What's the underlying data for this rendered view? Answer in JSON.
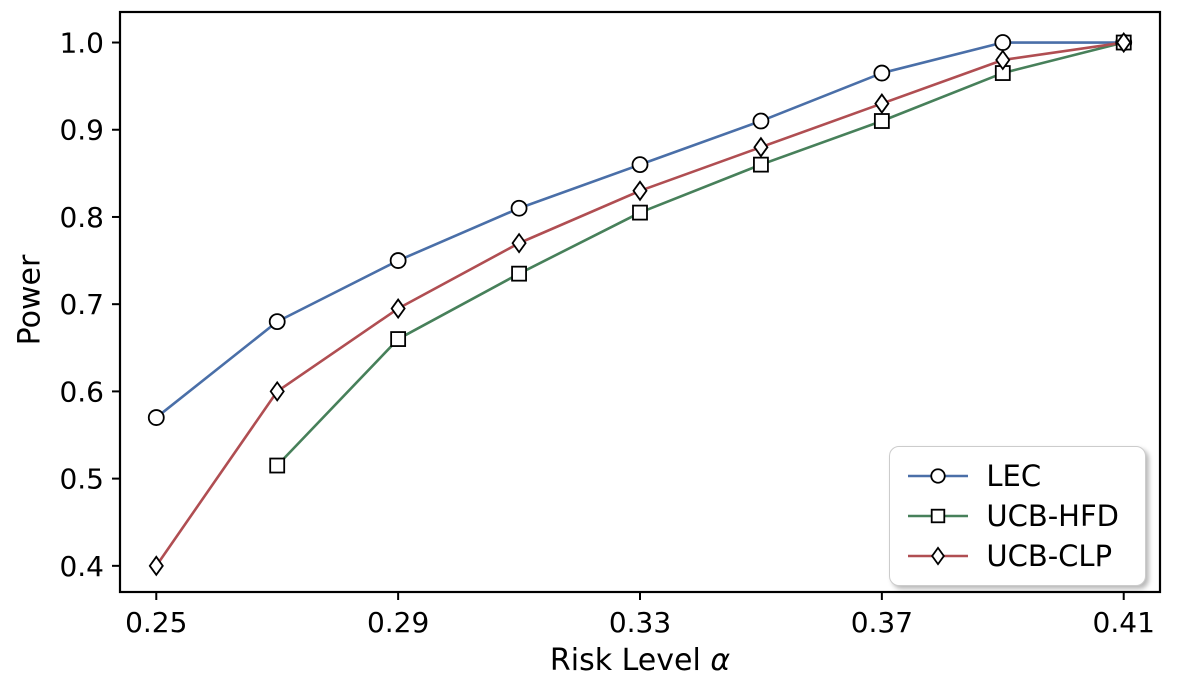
{
  "chart_data": {
    "type": "line",
    "title": "",
    "xlabel_text": "Risk Level ",
    "xlabel_symbol": "α",
    "ylabel": "Power",
    "xlim": [
      0.244,
      0.416
    ],
    "ylim": [
      0.37,
      1.035
    ],
    "xtick_values": [
      0.25,
      0.29,
      0.33,
      0.37,
      0.41
    ],
    "xtick_labels": [
      "0.25",
      "0.29",
      "0.33",
      "0.37",
      "0.41"
    ],
    "ytick_values": [
      0.4,
      0.5,
      0.6,
      0.7,
      0.8,
      0.9,
      1.0
    ],
    "ytick_labels": [
      "0.4",
      "0.5",
      "0.6",
      "0.7",
      "0.8",
      "0.9",
      "1.0"
    ],
    "grid": false,
    "background": "#ffffff",
    "axis_color": "#000000",
    "legend_position": "lower right",
    "series": [
      {
        "name": "LEC",
        "color": "#4a6fa8",
        "marker": "circle",
        "x": [
          0.25,
          0.27,
          0.29,
          0.31,
          0.33,
          0.35,
          0.37,
          0.39,
          0.41
        ],
        "y": [
          0.57,
          0.68,
          0.75,
          0.81,
          0.86,
          0.91,
          0.965,
          1.0,
          1.0
        ]
      },
      {
        "name": "UCB-HFD",
        "color": "#47805a",
        "marker": "square",
        "x": [
          0.27,
          0.29,
          0.31,
          0.33,
          0.35,
          0.37,
          0.39,
          0.41
        ],
        "y": [
          0.515,
          0.66,
          0.735,
          0.805,
          0.86,
          0.91,
          0.965,
          1.0
        ]
      },
      {
        "name": "UCB-CLP",
        "color": "#b04e52",
        "marker": "diamond",
        "x": [
          0.25,
          0.27,
          0.29,
          0.31,
          0.33,
          0.35,
          0.37,
          0.39,
          0.41
        ],
        "y": [
          0.4,
          0.6,
          0.695,
          0.77,
          0.83,
          0.88,
          0.93,
          0.98,
          1.0
        ]
      }
    ]
  }
}
